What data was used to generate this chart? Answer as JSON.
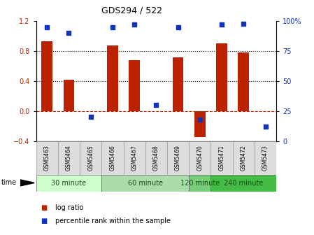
{
  "title": "GDS294 / 522",
  "samples": [
    "GSM5463",
    "GSM5464",
    "GSM5465",
    "GSM5466",
    "GSM5467",
    "GSM5468",
    "GSM5469",
    "GSM5470",
    "GSM5471",
    "GSM5472",
    "GSM5473"
  ],
  "log_ratio": [
    0.93,
    0.42,
    0.0,
    0.88,
    0.68,
    0.0,
    0.72,
    -0.35,
    0.9,
    0.78,
    0.0
  ],
  "percentile": [
    95,
    90,
    20,
    95,
    97,
    30,
    95,
    18,
    97,
    98,
    12
  ],
  "bar_color": "#bb2200",
  "dot_color": "#1133bb",
  "left_ylim": [
    -0.4,
    1.2
  ],
  "right_ylim": [
    0,
    100
  ],
  "left_yticks": [
    -0.4,
    0.0,
    0.4,
    0.8,
    1.2
  ],
  "right_yticks": [
    0,
    25,
    50,
    75,
    100
  ],
  "right_yticklabels": [
    "0",
    "25",
    "50",
    "75",
    "100%"
  ],
  "dotted_lines": [
    0.4,
    0.8
  ],
  "zero_line_color": "#bb2200",
  "groups": [
    {
      "label": "30 minute",
      "start": 0,
      "end": 2,
      "color": "#ccffcc"
    },
    {
      "label": "60 minute",
      "start": 3,
      "end": 6,
      "color": "#aaddaa"
    },
    {
      "label": "120 minute",
      "start": 7,
      "end": 7,
      "color": "#77cc77"
    },
    {
      "label": "240 minute",
      "start": 8,
      "end": 10,
      "color": "#44bb44"
    }
  ],
  "time_label": "time",
  "legend_bar_label": "log ratio",
  "legend_dot_label": "percentile rank within the sample",
  "bar_width": 0.5,
  "background_color": "#ffffff"
}
